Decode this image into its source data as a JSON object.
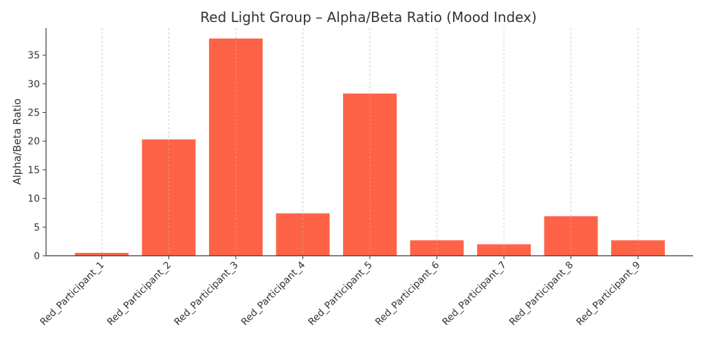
{
  "chart_data": {
    "type": "bar",
    "title": "Red Light Group – Alpha/Beta Ratio (Mood Index)",
    "xlabel": "",
    "ylabel": "Alpha/Beta Ratio",
    "categories": [
      "Red_Participant_1",
      "Red_Participant_2",
      "Red_Participant_3",
      "Red_Participant_4",
      "Red_Participant_5",
      "Red_Participant_6",
      "Red_Participant_7",
      "Red_Participant_8",
      "Red_Participant_9"
    ],
    "values": [
      0.5,
      20.3,
      37.9,
      7.4,
      28.3,
      2.7,
      2.0,
      6.9,
      2.7
    ],
    "ylim": [
      0,
      39.7
    ],
    "yticks": [
      0,
      5,
      10,
      15,
      20,
      25,
      30,
      35
    ],
    "bar_color": "#ff6347",
    "grid": "x-axis dashed vertical lines",
    "legend": "none"
  }
}
